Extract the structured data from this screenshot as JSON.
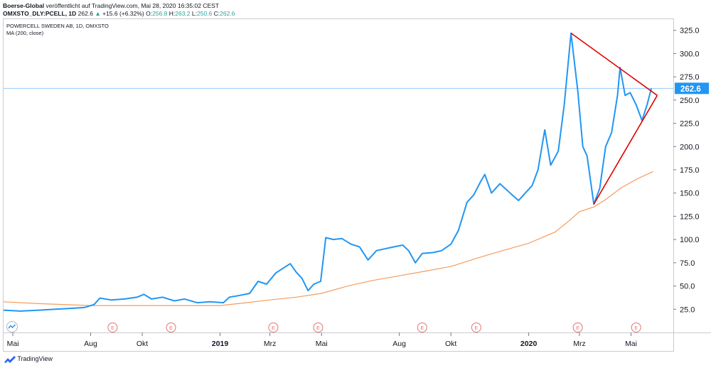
{
  "header": {
    "publisher": "Boerse-Global",
    "published_text": "veröffentlicht auf TradingView.com, Mai 28, 2020 16:35:02 CEST",
    "symbol": "OMXSTO_DLY:PCELL, 1D",
    "last": "262.6",
    "up_arrow": "▲",
    "change": "+15.6 (+6.32%)",
    "o_label": "O:",
    "o_value": "256.8",
    "h_label": "H:",
    "h_value": "263.2",
    "l_label": "L:",
    "l_value": "250.6",
    "c_label": "C:",
    "c_value": "262.6"
  },
  "legend": {
    "title": "POWERCELL SWEDEN AB, 1D, OMXSTO",
    "ma": "MA (200, close)"
  },
  "brand": {
    "label": "TradingView",
    "icon": "tradingview-logo-icon"
  },
  "colors": {
    "price": "#2196f3",
    "ma": "#f59c5b",
    "trendline": "#e00000",
    "last_price_label": "#2196f3",
    "earnings": "#e57373",
    "last_price_line": "#90caf9"
  },
  "chart_data": {
    "type": "line",
    "title": "POWERCELL SWEDEN AB, 1D, OMXSTO",
    "ylim": [
      0,
      337
    ],
    "y_ticks": [
      "25.0",
      "50.0",
      "75.0",
      "100.0",
      "125.0",
      "150.0",
      "175.0",
      "200.0",
      "225.0",
      "250.0",
      "275.0",
      "300.0",
      "325.0"
    ],
    "y_tick_values": [
      25,
      50,
      75,
      100,
      125,
      150,
      175,
      200,
      225,
      250,
      275,
      300,
      325
    ],
    "x_ticks": [
      {
        "label": "Mai",
        "date": "2018-05-01",
        "bold": false
      },
      {
        "label": "Aug",
        "date": "2018-08-01",
        "bold": false
      },
      {
        "label": "Okt",
        "date": "2018-10-01",
        "bold": false
      },
      {
        "label": "2019",
        "date": "2019-01-01",
        "bold": true
      },
      {
        "label": "Mrz",
        "date": "2019-03-01",
        "bold": false
      },
      {
        "label": "Mai",
        "date": "2019-05-01",
        "bold": false
      },
      {
        "label": "Aug",
        "date": "2019-08-01",
        "bold": false
      },
      {
        "label": "Okt",
        "date": "2019-10-01",
        "bold": false
      },
      {
        "label": "2020",
        "date": "2020-01-01",
        "bold": true
      },
      {
        "label": "Mrz",
        "date": "2020-03-01",
        "bold": false
      },
      {
        "label": "Mai",
        "date": "2020-05-01",
        "bold": false
      }
    ],
    "x_range": [
      "2018-04-20",
      "2020-06-20"
    ],
    "last_price": 262.6,
    "last_price_label": "262.6",
    "series": [
      {
        "name": "POWERCELL SWEDEN AB",
        "points": [
          [
            "2018-04-20",
            24
          ],
          [
            "2018-05-10",
            23
          ],
          [
            "2018-06-01",
            24
          ],
          [
            "2018-06-20",
            25
          ],
          [
            "2018-07-10",
            26
          ],
          [
            "2018-07-25",
            27
          ],
          [
            "2018-08-05",
            30
          ],
          [
            "2018-08-12",
            37
          ],
          [
            "2018-08-25",
            35
          ],
          [
            "2018-09-10",
            36
          ],
          [
            "2018-09-25",
            38
          ],
          [
            "2018-10-03",
            41
          ],
          [
            "2018-10-12",
            36
          ],
          [
            "2018-10-25",
            38
          ],
          [
            "2018-11-08",
            34
          ],
          [
            "2018-11-20",
            36
          ],
          [
            "2018-12-05",
            32
          ],
          [
            "2018-12-20",
            33
          ],
          [
            "2019-01-05",
            32
          ],
          [
            "2019-01-12",
            38
          ],
          [
            "2019-01-25",
            40
          ],
          [
            "2019-02-05",
            42
          ],
          [
            "2019-02-15",
            55
          ],
          [
            "2019-02-25",
            52
          ],
          [
            "2019-03-08",
            64
          ],
          [
            "2019-03-18",
            70
          ],
          [
            "2019-03-25",
            74
          ],
          [
            "2019-04-01",
            65
          ],
          [
            "2019-04-08",
            58
          ],
          [
            "2019-04-15",
            45
          ],
          [
            "2019-04-22",
            52
          ],
          [
            "2019-04-30",
            55
          ],
          [
            "2019-05-06",
            102
          ],
          [
            "2019-05-15",
            100
          ],
          [
            "2019-05-25",
            101
          ],
          [
            "2019-06-05",
            95
          ],
          [
            "2019-06-15",
            92
          ],
          [
            "2019-06-25",
            78
          ],
          [
            "2019-07-05",
            88
          ],
          [
            "2019-07-15",
            90
          ],
          [
            "2019-07-25",
            92
          ],
          [
            "2019-08-05",
            94
          ],
          [
            "2019-08-12",
            88
          ],
          [
            "2019-08-20",
            75
          ],
          [
            "2019-08-28",
            85
          ],
          [
            "2019-09-10",
            86
          ],
          [
            "2019-09-20",
            88
          ],
          [
            "2019-10-01",
            95
          ],
          [
            "2019-10-10",
            110
          ],
          [
            "2019-10-20",
            140
          ],
          [
            "2019-10-28",
            148
          ],
          [
            "2019-11-05",
            162
          ],
          [
            "2019-11-10",
            170
          ],
          [
            "2019-11-18",
            150
          ],
          [
            "2019-11-28",
            160
          ],
          [
            "2019-12-10",
            150
          ],
          [
            "2019-12-20",
            142
          ],
          [
            "2020-01-05",
            158
          ],
          [
            "2020-01-12",
            175
          ],
          [
            "2020-01-20",
            218
          ],
          [
            "2020-01-27",
            180
          ],
          [
            "2020-02-05",
            195
          ],
          [
            "2020-02-12",
            245
          ],
          [
            "2020-02-20",
            322
          ],
          [
            "2020-02-28",
            260
          ],
          [
            "2020-03-05",
            200
          ],
          [
            "2020-03-10",
            190
          ],
          [
            "2020-03-18",
            138
          ],
          [
            "2020-03-25",
            155
          ],
          [
            "2020-04-01",
            200
          ],
          [
            "2020-04-08",
            215
          ],
          [
            "2020-04-15",
            255
          ],
          [
            "2020-04-18",
            285
          ],
          [
            "2020-04-24",
            255
          ],
          [
            "2020-04-30",
            258
          ],
          [
            "2020-05-07",
            245
          ],
          [
            "2020-05-14",
            228
          ],
          [
            "2020-05-20",
            245
          ],
          [
            "2020-05-25",
            262.6
          ]
        ]
      },
      {
        "name": "MA (200, close)",
        "points": [
          [
            "2018-04-20",
            33
          ],
          [
            "2018-06-01",
            31
          ],
          [
            "2018-08-01",
            29
          ],
          [
            "2018-10-01",
            29
          ],
          [
            "2018-12-01",
            29
          ],
          [
            "2019-01-01",
            29
          ],
          [
            "2019-02-01",
            32
          ],
          [
            "2019-03-01",
            35
          ],
          [
            "2019-04-01",
            38
          ],
          [
            "2019-05-01",
            42
          ],
          [
            "2019-06-01",
            50
          ],
          [
            "2019-07-01",
            56
          ],
          [
            "2019-08-01",
            61
          ],
          [
            "2019-09-01",
            66
          ],
          [
            "2019-10-01",
            71
          ],
          [
            "2019-11-01",
            80
          ],
          [
            "2019-12-01",
            88
          ],
          [
            "2020-01-01",
            96
          ],
          [
            "2020-02-01",
            108
          ],
          [
            "2020-02-15",
            118
          ],
          [
            "2020-03-01",
            130
          ],
          [
            "2020-03-18",
            135
          ],
          [
            "2020-04-01",
            143
          ],
          [
            "2020-04-20",
            156
          ],
          [
            "2020-05-10",
            166
          ],
          [
            "2020-05-27",
            173
          ]
        ]
      }
    ],
    "trendlines": [
      {
        "from": [
          "2020-02-20",
          322
        ],
        "to": [
          "2020-06-01",
          255
        ]
      },
      {
        "from": [
          "2020-03-18",
          138
        ],
        "to": [
          "2020-06-01",
          255
        ]
      }
    ],
    "earnings_markers": [
      "2018-08-27",
      "2018-11-04",
      "2019-03-05",
      "2019-04-27",
      "2019-08-28",
      "2019-10-31",
      "2020-02-28",
      "2020-05-07"
    ],
    "earnings_label": "E"
  }
}
